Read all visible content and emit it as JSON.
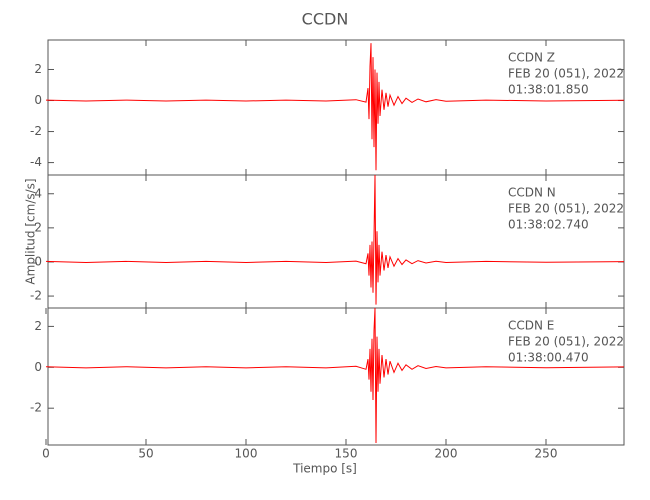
{
  "chart_data": [
    {
      "type": "line",
      "title": "CCDN",
      "annotation": [
        "CCDN   Z",
        "FEB 20 (051), 2022",
        "01:38:01.850"
      ],
      "color": "#ff0000",
      "xlim": [
        1,
        289
      ],
      "xticks": [
        50,
        100,
        150,
        200,
        250
      ],
      "ylim": [
        -4.8,
        3.9
      ],
      "yticks": [
        -4,
        -2,
        0,
        2
      ],
      "x": [
        0,
        20,
        40,
        60,
        80,
        100,
        120,
        140,
        155,
        160,
        161,
        161.5,
        162,
        162.5,
        163,
        163.5,
        164,
        164.5,
        165,
        165.5,
        166,
        166.5,
        167,
        168,
        169,
        170,
        171,
        172,
        174,
        176,
        178,
        180,
        183,
        186,
        190,
        195,
        200,
        220,
        250,
        289
      ],
      "values": [
        0.03,
        -0.03,
        0.03,
        -0.03,
        0.03,
        -0.03,
        0.03,
        -0.03,
        0.05,
        -0.1,
        0.8,
        -1.2,
        2.2,
        3.7,
        -2.5,
        2.8,
        -3.0,
        2.0,
        -4.5,
        1.8,
        -1.5,
        1.2,
        -1.0,
        0.7,
        -0.6,
        0.5,
        -0.4,
        0.35,
        -0.3,
        0.25,
        -0.2,
        0.15,
        -0.12,
        0.1,
        -0.08,
        0.06,
        -0.05,
        0.03,
        -0.03,
        0.02
      ]
    },
    {
      "type": "line",
      "ylabel": "Amplitud [cm/s/s]",
      "annotation": [
        "CCDN   N",
        "FEB 20 (051), 2022",
        "01:38:02.740"
      ],
      "color": "#ff0000",
      "xlim": [
        1,
        289
      ],
      "xticks": [
        50,
        100,
        150,
        200,
        250
      ],
      "ylim": [
        -2.7,
        5.1
      ],
      "yticks": [
        -2,
        0,
        2,
        4
      ],
      "x": [
        0,
        20,
        40,
        60,
        80,
        100,
        120,
        140,
        155,
        160,
        161,
        161.5,
        162,
        162.5,
        163,
        163.5,
        164,
        164.5,
        165,
        165.5,
        166,
        166.5,
        167,
        168,
        169,
        170,
        171,
        172,
        174,
        176,
        178,
        180,
        183,
        186,
        190,
        195,
        200,
        220,
        250,
        289
      ],
      "values": [
        0.03,
        -0.03,
        0.03,
        -0.03,
        0.03,
        -0.03,
        0.03,
        -0.03,
        0.05,
        -0.1,
        0.5,
        -0.8,
        1.0,
        -1.5,
        1.2,
        -1.8,
        1.5,
        5.1,
        -2.5,
        1.8,
        -1.2,
        1.0,
        -0.8,
        0.6,
        -0.5,
        0.4,
        -0.35,
        0.3,
        -0.25,
        0.2,
        -0.15,
        0.12,
        -0.1,
        0.08,
        -0.06,
        0.04,
        -0.03,
        0.03,
        -0.02,
        0.02
      ]
    },
    {
      "type": "line",
      "xlabel": "Tiempo [s]",
      "annotation": [
        "CCDN   E",
        "FEB 20 (051), 2022",
        "01:38:00.470"
      ],
      "color": "#ff0000",
      "xlim": [
        1,
        289
      ],
      "xticks": [
        0,
        50,
        100,
        150,
        200,
        250
      ],
      "ylim": [
        -3.8,
        2.9
      ],
      "yticks": [
        -2,
        0,
        2
      ],
      "x": [
        0,
        20,
        40,
        60,
        80,
        100,
        120,
        140,
        155,
        160,
        161,
        161.5,
        162,
        162.5,
        163,
        163.5,
        164,
        164.5,
        165,
        165.5,
        166,
        166.5,
        167,
        168,
        169,
        170,
        171,
        172,
        174,
        176,
        178,
        180,
        183,
        186,
        190,
        195,
        200,
        220,
        250,
        289
      ],
      "values": [
        0.03,
        -0.03,
        0.03,
        -0.03,
        0.03,
        -0.03,
        0.03,
        -0.03,
        0.05,
        -0.1,
        0.4,
        -0.6,
        0.9,
        -1.2,
        1.4,
        -1.6,
        1.8,
        2.9,
        -3.7,
        1.5,
        -1.2,
        0.9,
        -0.8,
        0.6,
        -0.5,
        0.4,
        -0.35,
        0.3,
        -0.25,
        0.2,
        -0.15,
        0.12,
        -0.1,
        0.08,
        -0.06,
        0.04,
        -0.03,
        0.03,
        -0.02,
        0.02
      ]
    }
  ]
}
